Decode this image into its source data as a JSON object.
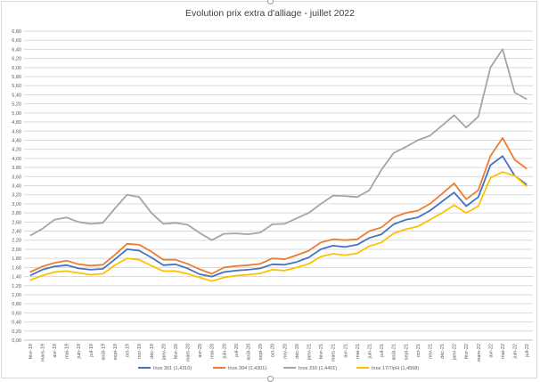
{
  "chart_data": {
    "type": "line",
    "title": "Evolution prix extra d'alliage - juillet 2022",
    "xlabel": "",
    "ylabel": "",
    "ylim": [
      0,
      6.8
    ],
    "ytick_step": 0.2,
    "ytick_labels": [
      "0,00",
      "0,20",
      "0,40",
      "0,60",
      "0,80",
      "1,00",
      "1,20",
      "1,40",
      "1,60",
      "1,80",
      "2,00",
      "2,20",
      "2,40",
      "2,60",
      "2,80",
      "3,00",
      "3,20",
      "3,40",
      "3,60",
      "3,80",
      "4,00",
      "4,20",
      "4,40",
      "4,60",
      "4,80",
      "5,00",
      "5,20",
      "5,40",
      "5,60",
      "5,80",
      "6,00",
      "6,20",
      "6,40",
      "6,60",
      "6,80"
    ],
    "grid": true,
    "legend_position": "bottom",
    "categories": [
      "févr-19",
      "mars-19",
      "avr-19",
      "mai-19",
      "juin-19",
      "juil-19",
      "août-19",
      "sept-19",
      "oct-19",
      "nov-19",
      "déc-19",
      "janv-20",
      "févr-20",
      "mars-20",
      "avr-20",
      "mai-20",
      "juin-20",
      "juil-20",
      "août-20",
      "sept-20",
      "oct-20",
      "nov-20",
      "déc-20",
      "janv-21",
      "févr-21",
      "mars-21",
      "avr-21",
      "mai-21",
      "juin-21",
      "juil-21",
      "août-21",
      "sept-21",
      "oct-21",
      "nov-21",
      "déc-21",
      "janv-22",
      "févr-22",
      "mars-22",
      "avr-22",
      "mai-22",
      "juin-22",
      "juil-22"
    ],
    "visible_tick_labels": [
      "févr-19",
      "mars-19",
      "avr-19",
      "mai-19",
      "juin-19",
      "juil-19",
      "août-19",
      "sept-19",
      "oct-19",
      "nov-19",
      "déc-19",
      "janv-20",
      "févr-20",
      "mars-20",
      "avr-20",
      "mai-20",
      "juin-20",
      "juil-20",
      "août-20",
      "sept-20",
      "oct-20",
      "nov-20",
      "déc-20",
      "janv-21",
      "févr-21",
      "mars-21",
      "avr-21",
      "mai-21",
      "juin-21",
      "juil-21",
      "août-21",
      "sept-21",
      "oct-21",
      "nov-21",
      "déc-21",
      "janv-22",
      "févr-22",
      "mars-22",
      "avr-22",
      "mai-22",
      "juin-22",
      "juil-22"
    ],
    "series": [
      {
        "name": "Inox 301 (1,4310)",
        "color": "#4472c4",
        "values": [
          1.42,
          1.55,
          1.62,
          1.65,
          1.58,
          1.55,
          1.57,
          1.78,
          2.0,
          1.97,
          1.82,
          1.65,
          1.67,
          1.58,
          1.45,
          1.4,
          1.5,
          1.53,
          1.55,
          1.58,
          1.67,
          1.66,
          1.72,
          1.82,
          2.0,
          2.08,
          2.05,
          2.1,
          2.25,
          2.33,
          2.55,
          2.65,
          2.7,
          2.85,
          3.05,
          3.25,
          2.95,
          3.15,
          3.85,
          4.05,
          3.62,
          3.42
        ]
      },
      {
        "name": "Inox 304 (1,4301)",
        "color": "#ed7d31",
        "values": [
          1.5,
          1.62,
          1.7,
          1.75,
          1.67,
          1.64,
          1.66,
          1.88,
          2.12,
          2.1,
          1.95,
          1.77,
          1.77,
          1.68,
          1.56,
          1.46,
          1.6,
          1.63,
          1.65,
          1.68,
          1.8,
          1.78,
          1.87,
          1.97,
          2.15,
          2.22,
          2.2,
          2.22,
          2.4,
          2.48,
          2.7,
          2.8,
          2.85,
          3.0,
          3.22,
          3.45,
          3.1,
          3.3,
          4.05,
          4.45,
          3.97,
          3.77
        ]
      },
      {
        "name": "Inox 316 (1,4401)",
        "color": "#a5a5a5",
        "values": [
          2.3,
          2.45,
          2.65,
          2.7,
          2.6,
          2.56,
          2.58,
          2.9,
          3.2,
          3.15,
          2.8,
          2.56,
          2.58,
          2.54,
          2.36,
          2.2,
          2.34,
          2.35,
          2.33,
          2.37,
          2.55,
          2.56,
          2.68,
          2.8,
          3.0,
          3.18,
          3.17,
          3.15,
          3.3,
          3.75,
          4.12,
          4.25,
          4.4,
          4.5,
          4.72,
          4.95,
          4.68,
          4.92,
          6.0,
          6.4,
          5.45,
          5.3
        ]
      },
      {
        "name": "Inox 17/7/pH (1,4568)",
        "color": "#ffc000",
        "values": [
          1.32,
          1.42,
          1.5,
          1.52,
          1.48,
          1.44,
          1.46,
          1.65,
          1.8,
          1.77,
          1.64,
          1.52,
          1.52,
          1.46,
          1.38,
          1.3,
          1.38,
          1.42,
          1.44,
          1.47,
          1.55,
          1.53,
          1.6,
          1.68,
          1.84,
          1.9,
          1.87,
          1.91,
          2.07,
          2.15,
          2.35,
          2.44,
          2.5,
          2.65,
          2.8,
          2.97,
          2.8,
          2.95,
          3.57,
          3.7,
          3.62,
          3.38
        ]
      }
    ]
  }
}
